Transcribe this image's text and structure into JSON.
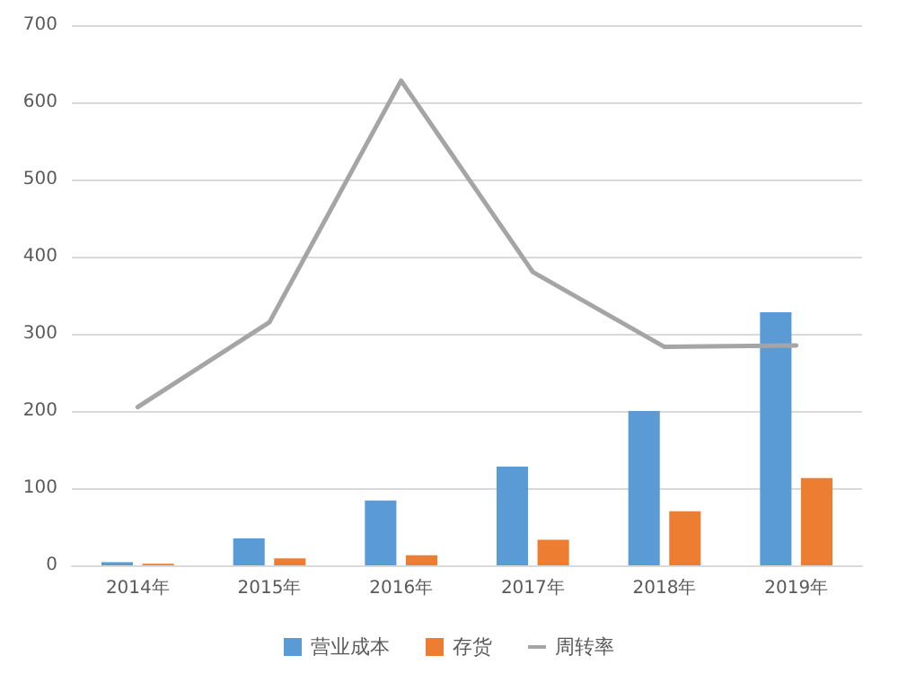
{
  "chart_data": {
    "type": "bar",
    "categories": [
      "2014年",
      "2015年",
      "2016年",
      "2017年",
      "2018年",
      "2019年"
    ],
    "series": [
      {
        "name": "营业成本",
        "color": "#5b9bd5",
        "values": [
          4,
          35,
          84,
          128,
          200,
          328
        ]
      },
      {
        "name": "存货",
        "color": "#ed7d31",
        "values": [
          2,
          9,
          13,
          33,
          70,
          113
        ]
      },
      {
        "name": "周转率",
        "type": "line",
        "color": "#a5a5a5",
        "values": [
          205,
          315,
          628,
          380,
          283,
          285
        ]
      }
    ],
    "ylim": [
      0,
      700
    ],
    "yticks": [
      0,
      100,
      200,
      300,
      400,
      500,
      600,
      700
    ],
    "grid": "y",
    "legend": "bottom",
    "marker": "none",
    "line_style": "solid"
  }
}
